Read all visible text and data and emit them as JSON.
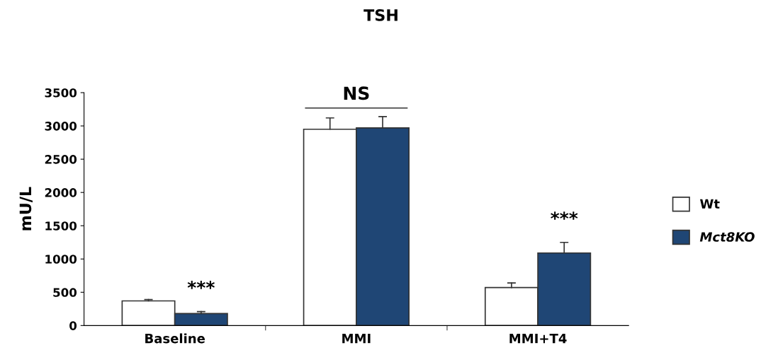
{
  "chart_data": {
    "type": "bar",
    "title": "TSH",
    "ylabel": "mU/L",
    "categories": [
      "Baseline",
      "MMI",
      "MMI+T4"
    ],
    "series": [
      {
        "name": "Wt",
        "color": "#ffffff",
        "values": [
          370,
          2950,
          570
        ],
        "errors": [
          [
            370,
            390
          ],
          [
            2950,
            3120
          ],
          [
            570,
            640
          ]
        ]
      },
      {
        "name": "Mct8KO",
        "color": "#1f4675",
        "values": [
          180,
          2970,
          1090
        ],
        "errors": [
          [
            180,
            210
          ],
          [
            2970,
            3140
          ],
          [
            1090,
            1250
          ]
        ]
      }
    ],
    "ylim": [
      0,
      3500
    ],
    "yticks": [
      0,
      500,
      1000,
      1500,
      2000,
      2500,
      3000,
      3500
    ],
    "annotations": [
      "***",
      "NS",
      "***"
    ],
    "grid": false,
    "legend": "right"
  }
}
